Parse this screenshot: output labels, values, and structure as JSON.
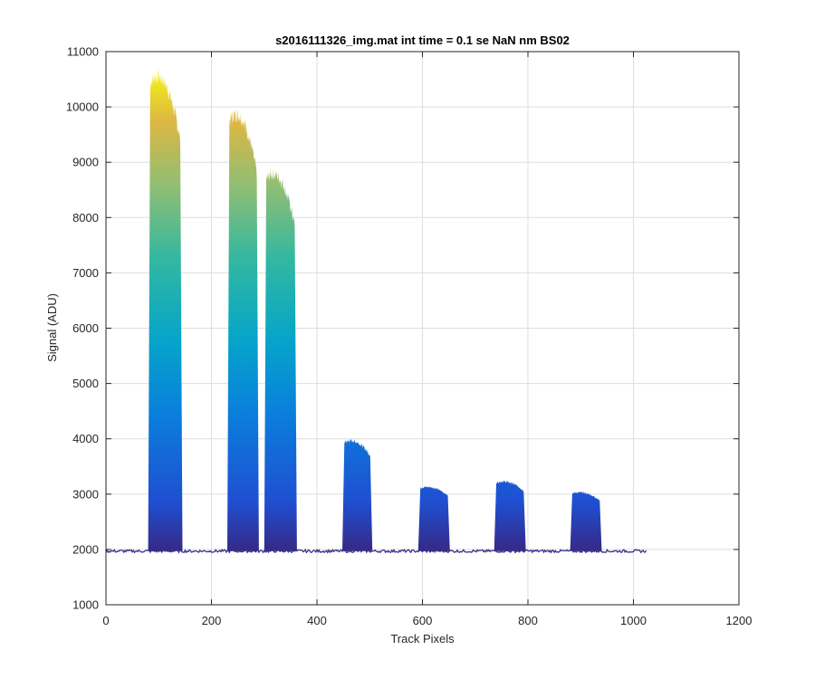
{
  "chart_data": {
    "type": "area",
    "title": "s2016111326_img.mat int time = 0.1 se  NaN nm BS02",
    "xlabel": "Track Pixels",
    "ylabel": "Signal (ADU)",
    "xlim": [
      0,
      1200
    ],
    "ylim": [
      1000,
      11000
    ],
    "xticks": [
      0,
      200,
      400,
      600,
      800,
      1000,
      1200
    ],
    "yticks": [
      1000,
      2000,
      3000,
      4000,
      5000,
      6000,
      7000,
      8000,
      9000,
      10000,
      11000
    ],
    "grid": true,
    "colormap": "parula",
    "baseline": 1970,
    "x_end": 1024,
    "peaks": [
      {
        "x_start": 80,
        "x_end": 145,
        "max_signal": 10700
      },
      {
        "x_start": 230,
        "x_end": 290,
        "max_signal": 10000
      },
      {
        "x_start": 300,
        "x_end": 362,
        "max_signal": 8900
      },
      {
        "x_start": 448,
        "x_end": 505,
        "max_signal": 4000
      },
      {
        "x_start": 592,
        "x_end": 652,
        "max_signal": 3150
      },
      {
        "x_start": 736,
        "x_end": 796,
        "max_signal": 3250
      },
      {
        "x_start": 880,
        "x_end": 940,
        "max_signal": 3050
      }
    ]
  }
}
